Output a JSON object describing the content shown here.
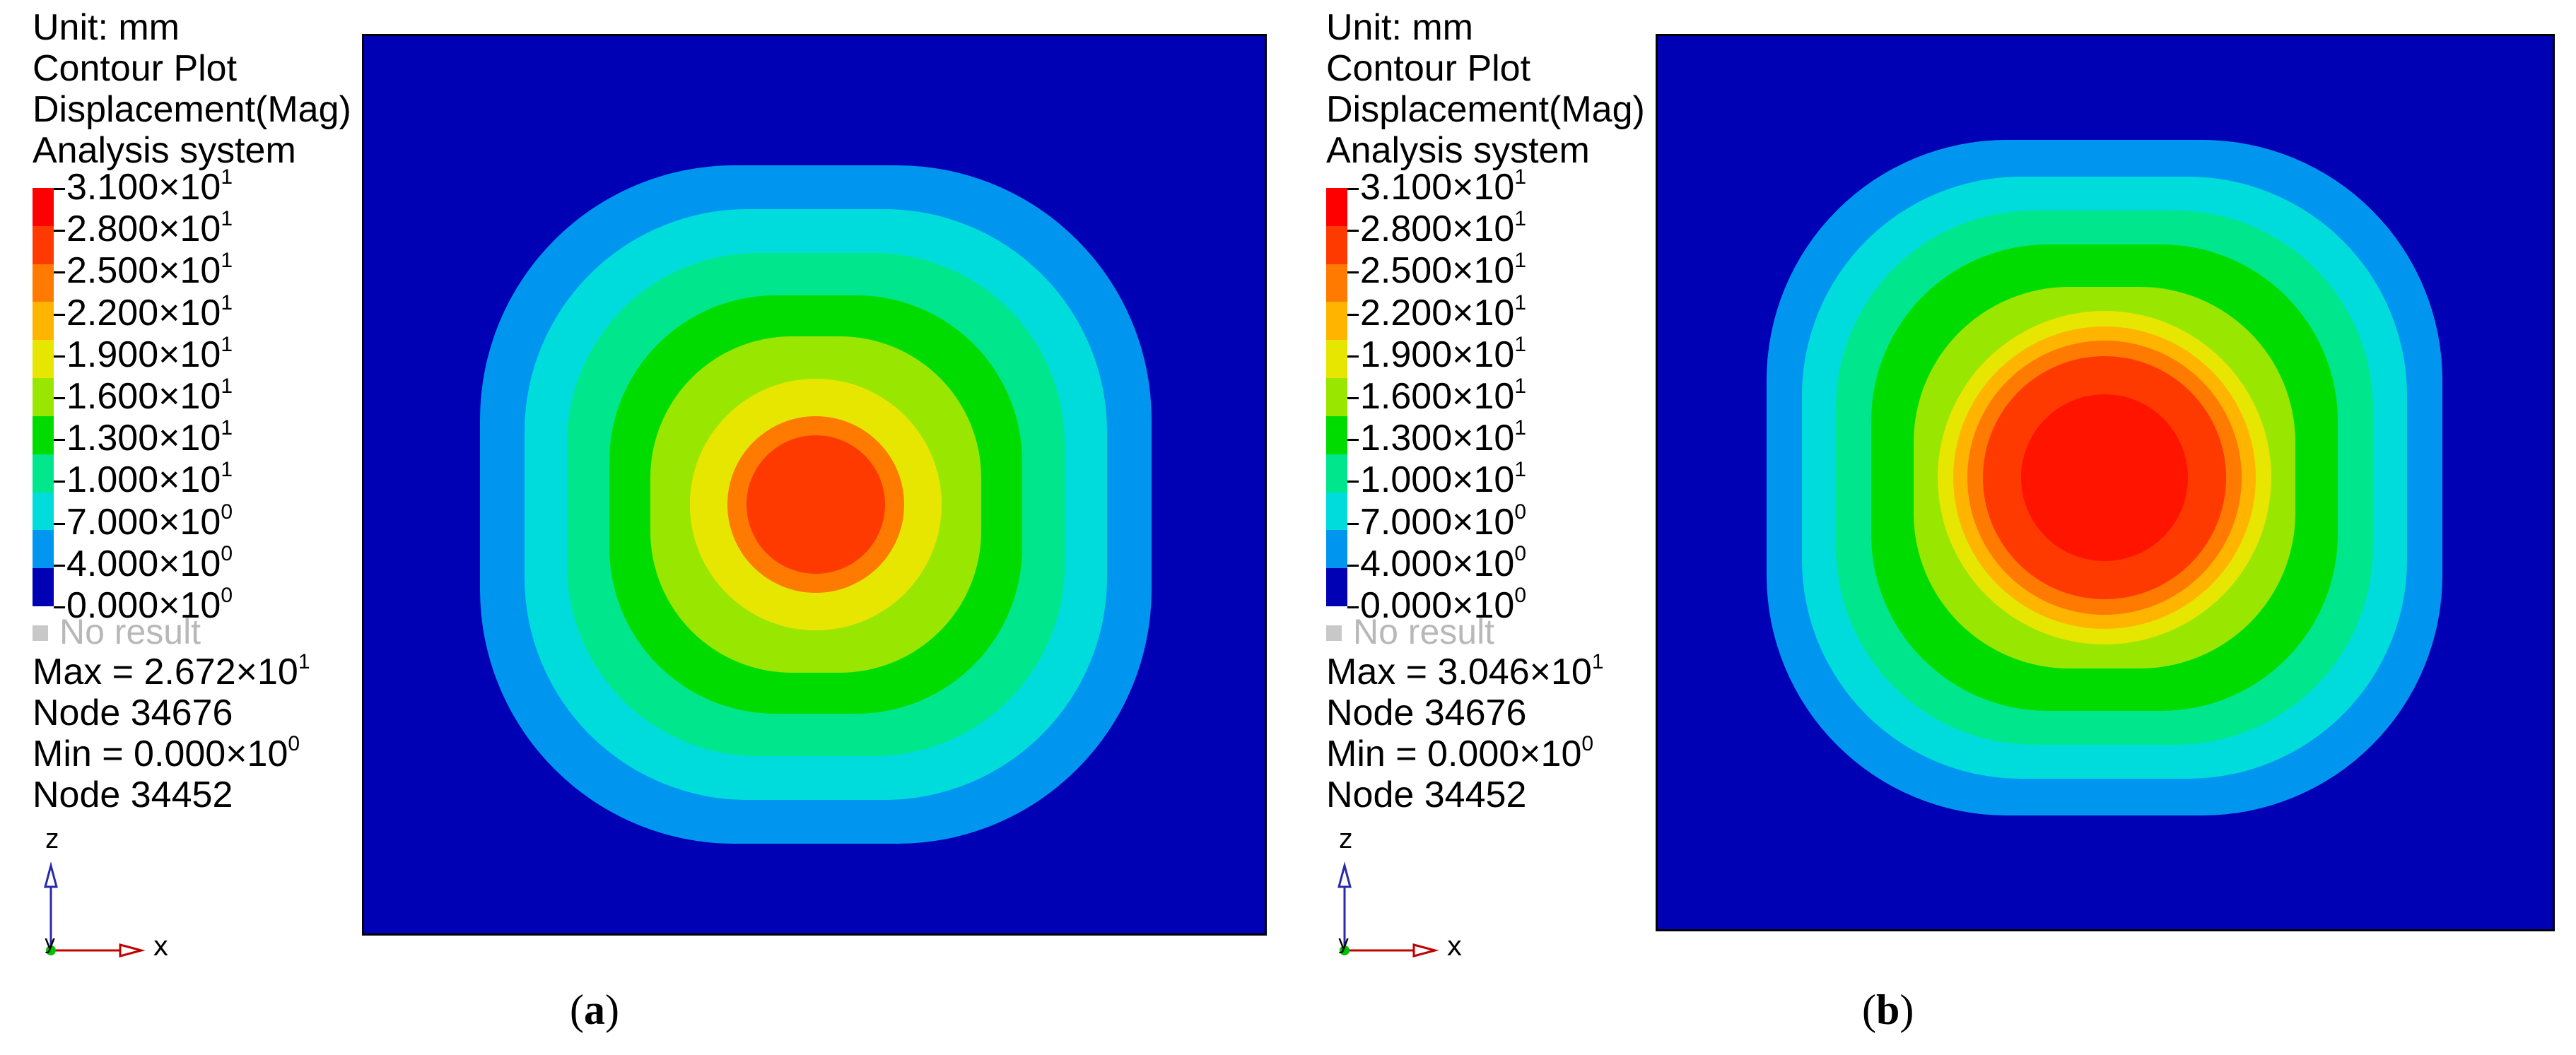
{
  "colors": {
    "background": "#0000b4",
    "legend_bands": [
      "#ff0000",
      "#ff3a00",
      "#ff7a00",
      "#ffb400",
      "#e6e600",
      "#99e600",
      "#00dc00",
      "#00e68c",
      "#00dcdc",
      "#0096f0"
    ],
    "no_result": "#c8c8c8"
  },
  "panels": [
    {
      "header": [
        "Unit: mm",
        "Contour Plot",
        "Displacement(Mag)",
        "Analysis system"
      ],
      "legend_ticks": [
        {
          "mantissa": "3.100",
          "exp": "1"
        },
        {
          "mantissa": "2.800",
          "exp": "1"
        },
        {
          "mantissa": "2.500",
          "exp": "1"
        },
        {
          "mantissa": "2.200",
          "exp": "1"
        },
        {
          "mantissa": "1.900",
          "exp": "1"
        },
        {
          "mantissa": "1.600",
          "exp": "1"
        },
        {
          "mantissa": "1.300",
          "exp": "1"
        },
        {
          "mantissa": "1.000",
          "exp": "1"
        },
        {
          "mantissa": "7.000",
          "exp": "0"
        },
        {
          "mantissa": "4.000",
          "exp": "0"
        },
        {
          "mantissa": "0.000",
          "exp": "0"
        }
      ],
      "no_result": "No result",
      "max_prefix": "Max = 2.672×10",
      "max_exp": "1",
      "max_node": "Node 34676",
      "min_prefix": "Min = 0.000×10",
      "min_exp": "0",
      "min_node": "Node 34452",
      "axis_z": "z",
      "axis_y": "y",
      "axis_x": "x",
      "caption": "a",
      "peak_displacement_mm": 26.72
    },
    {
      "header": [
        "Unit: mm",
        "Contour Plot",
        "Displacement(Mag)",
        "Analysis system"
      ],
      "legend_ticks": [
        {
          "mantissa": "3.100",
          "exp": "1"
        },
        {
          "mantissa": "2.800",
          "exp": "1"
        },
        {
          "mantissa": "2.500",
          "exp": "1"
        },
        {
          "mantissa": "2.200",
          "exp": "1"
        },
        {
          "mantissa": "1.900",
          "exp": "1"
        },
        {
          "mantissa": "1.600",
          "exp": "1"
        },
        {
          "mantissa": "1.300",
          "exp": "1"
        },
        {
          "mantissa": "1.000",
          "exp": "1"
        },
        {
          "mantissa": "7.000",
          "exp": "0"
        },
        {
          "mantissa": "4.000",
          "exp": "0"
        },
        {
          "mantissa": "0.000",
          "exp": "0"
        }
      ],
      "no_result": "No result",
      "max_prefix": "Max = 3.046×10",
      "max_exp": "1",
      "max_node": "Node 34676",
      "min_prefix": "Min = 0.000×10",
      "min_exp": "0",
      "min_node": "Node 34452",
      "axis_z": "z",
      "axis_y": "y",
      "axis_x": "x",
      "caption": "b",
      "peak_displacement_mm": 30.46
    }
  ]
}
